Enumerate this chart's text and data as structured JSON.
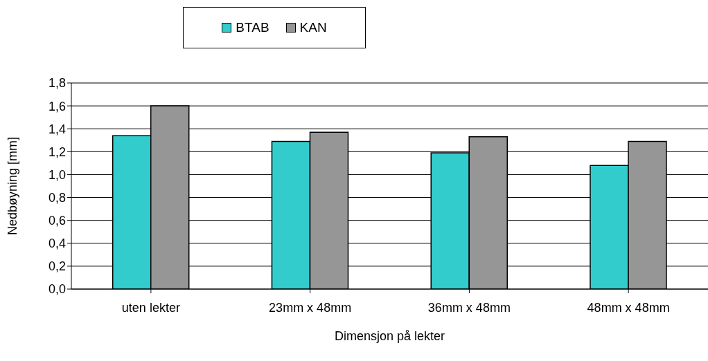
{
  "chart_data": {
    "type": "bar",
    "xlabel": "Dimensjon på lekter",
    "ylabel": "Nedbøyning [mm]",
    "categories": [
      "uten lekter",
      "23mm x 48mm",
      "36mm x 48mm",
      "48mm x 48mm"
    ],
    "series": [
      {
        "name": "BTAB",
        "color": "#33cccc",
        "values": [
          1.34,
          1.29,
          1.19,
          1.08
        ]
      },
      {
        "name": "KAN",
        "color": "#969696",
        "values": [
          1.6,
          1.37,
          1.33,
          1.29
        ]
      }
    ],
    "ylim": [
      0,
      1.8
    ],
    "yticks": [
      {
        "value": 0,
        "label": "0,0"
      },
      {
        "value": 0.2,
        "label": "0,2"
      },
      {
        "value": 0.4,
        "label": "0,4"
      },
      {
        "value": 0.6,
        "label": "0,6"
      },
      {
        "value": 0.8,
        "label": "0,8"
      },
      {
        "value": 1,
        "label": "1,0"
      },
      {
        "value": 1.2,
        "label": "1,2"
      },
      {
        "value": 1.4,
        "label": "1,4"
      },
      {
        "value": 1.6,
        "label": "1,6"
      },
      {
        "value": 1.8,
        "label": "1,8"
      }
    ],
    "grid": "y",
    "legend": "top"
  }
}
